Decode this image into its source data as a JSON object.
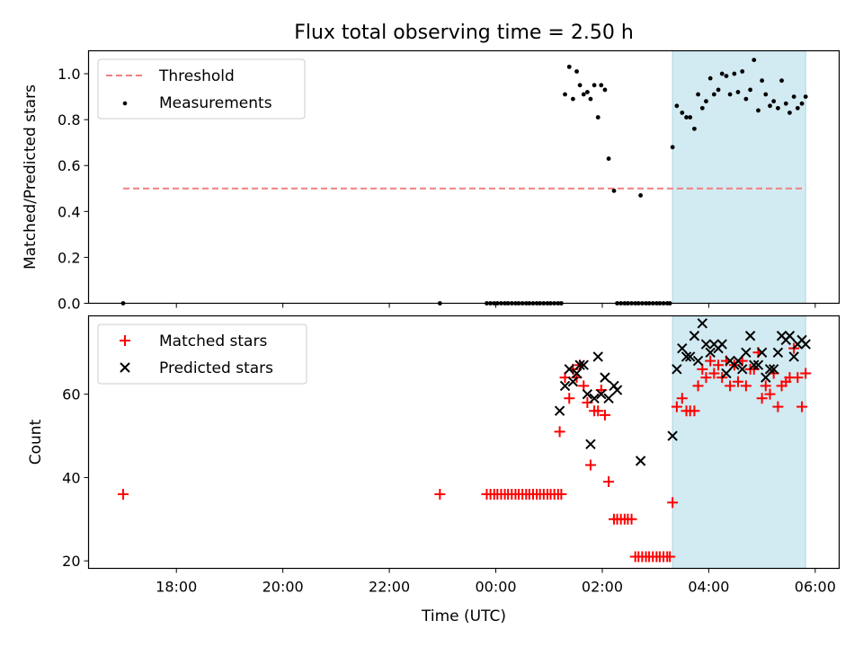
{
  "chart_data": [
    {
      "type": "scatter",
      "title": "Flux total observing time = 2.50 h",
      "xlabel": "",
      "ylabel": "Matched/Predicted stars",
      "xlim": [
        -7.65,
        6.45
      ],
      "ylim": [
        0,
        1.1
      ],
      "yticks": [
        0.0,
        0.2,
        0.4,
        0.6,
        0.8,
        1.0
      ],
      "ytick_labels": [
        "0.0",
        "0.2",
        "0.4",
        "0.6",
        "0.8",
        "1.0"
      ],
      "shaded_region": {
        "x0": 3.32,
        "x1": 5.82,
        "color": "#add8e6"
      },
      "legend": {
        "placement": "top-left",
        "entries": [
          "Threshold",
          "Measurements"
        ]
      },
      "series": [
        {
          "name": "Threshold",
          "style": "dashed-line",
          "color": "#f08080",
          "x": [
            -7.0,
            5.82
          ],
          "y": [
            0.5,
            0.5
          ]
        },
        {
          "name": "Measurements",
          "style": "dot",
          "color": "#000000",
          "x": [
            -7.0,
            -1.05,
            -0.17,
            -0.1,
            -0.03,
            0.03,
            0.1,
            0.17,
            0.23,
            0.3,
            0.37,
            0.43,
            0.5,
            0.57,
            0.63,
            0.7,
            0.77,
            0.83,
            0.9,
            0.97,
            1.03,
            1.1,
            1.17,
            1.23,
            1.3,
            1.38,
            1.45,
            1.52,
            1.58,
            1.65,
            1.72,
            1.78,
            1.85,
            1.92,
            1.98,
            2.05,
            2.12,
            2.22,
            2.28,
            2.35,
            2.42,
            2.48,
            2.55,
            2.62,
            2.68,
            2.72,
            2.75,
            2.82,
            2.88,
            2.95,
            3.02,
            3.08,
            3.15,
            3.22,
            3.27,
            3.32,
            3.4,
            3.5,
            3.58,
            3.65,
            3.73,
            3.8,
            3.88,
            3.95,
            4.03,
            4.1,
            4.18,
            4.25,
            4.33,
            4.4,
            4.48,
            4.55,
            4.63,
            4.7,
            4.78,
            4.85,
            4.93,
            5.0,
            5.07,
            5.15,
            5.22,
            5.3,
            5.37,
            5.45,
            5.52,
            5.6,
            5.67,
            5.75,
            5.82
          ],
          "y": [
            0,
            0,
            0,
            0,
            0,
            0,
            0,
            0,
            0,
            0,
            0,
            0,
            0,
            0,
            0,
            0,
            0,
            0,
            0,
            0,
            0,
            0,
            0,
            0,
            0.91,
            1.03,
            0.89,
            1.01,
            0.95,
            0.91,
            0.92,
            0.89,
            0.95,
            0.81,
            0.95,
            0.93,
            0.63,
            0.49,
            0,
            0,
            0,
            0,
            0,
            0,
            0,
            0.47,
            0,
            0,
            0,
            0,
            0,
            0,
            0,
            0,
            0,
            0.68,
            0.86,
            0.83,
            0.81,
            0.81,
            0.76,
            0.91,
            0.85,
            0.88,
            0.98,
            0.91,
            0.93,
            1.0,
            0.99,
            0.91,
            1.0,
            0.92,
            1.01,
            0.89,
            0.93,
            1.06,
            0.84,
            0.97,
            0.91,
            0.86,
            0.88,
            0.85,
            0.97,
            0.87,
            0.83,
            0.9,
            0.85,
            0.87,
            0.9
          ]
        }
      ]
    },
    {
      "type": "scatter",
      "title": "",
      "xlabel": "Time (UTC)",
      "ylabel": "Count",
      "xlim": [
        -7.65,
        6.45
      ],
      "ylim": [
        18.2,
        78.8
      ],
      "xticks": [
        -6,
        -4,
        -2,
        0,
        2,
        4,
        6
      ],
      "xtick_labels": [
        "18:00",
        "20:00",
        "22:00",
        "00:00",
        "02:00",
        "04:00",
        "06:00"
      ],
      "yticks": [
        20,
        40,
        60
      ],
      "ytick_labels": [
        "20",
        "40",
        "60"
      ],
      "shaded_region": {
        "x0": 3.32,
        "x1": 5.82,
        "color": "#add8e6"
      },
      "legend": {
        "placement": "top-left",
        "entries": [
          "Matched stars",
          "Predicted stars"
        ]
      },
      "series": [
        {
          "name": "Matched stars",
          "style": "plus",
          "color": "#ff0000",
          "x": [
            -7.0,
            -1.05,
            -0.17,
            -0.1,
            -0.03,
            0.03,
            0.1,
            0.17,
            0.23,
            0.3,
            0.37,
            0.43,
            0.5,
            0.57,
            0.63,
            0.7,
            0.77,
            0.83,
            0.9,
            0.97,
            1.03,
            1.1,
            1.17,
            1.23,
            1.2,
            1.3,
            1.38,
            1.45,
            1.52,
            1.58,
            1.65,
            1.72,
            1.78,
            1.85,
            1.92,
            1.98,
            2.05,
            2.12,
            2.22,
            2.28,
            2.35,
            2.42,
            2.48,
            2.55,
            2.62,
            2.68,
            2.75,
            2.82,
            2.88,
            2.95,
            3.02,
            3.08,
            3.15,
            3.22,
            3.27,
            3.32,
            3.4,
            3.5,
            3.58,
            3.65,
            3.73,
            3.8,
            3.88,
            3.95,
            4.03,
            4.1,
            4.18,
            4.25,
            4.33,
            4.4,
            4.48,
            4.55,
            4.63,
            4.7,
            4.78,
            4.85,
            4.93,
            5.0,
            5.07,
            5.15,
            5.22,
            5.3,
            5.37,
            5.45,
            5.52,
            5.6,
            5.67,
            5.75,
            5.82
          ],
          "y": [
            36,
            36,
            36,
            36,
            36,
            36,
            36,
            36,
            36,
            36,
            36,
            36,
            36,
            36,
            36,
            36,
            36,
            36,
            36,
            36,
            36,
            36,
            36,
            36,
            51,
            64,
            59,
            66,
            64,
            67,
            62,
            58,
            43,
            56,
            56,
            61,
            55,
            39,
            30,
            30,
            30,
            30,
            30,
            30,
            21,
            21,
            21,
            21,
            21,
            21,
            21,
            21,
            21,
            21,
            21,
            34,
            57,
            59,
            56,
            56,
            56,
            62,
            66,
            64,
            68,
            65,
            67,
            64,
            68,
            62,
            67,
            63,
            68,
            62,
            66,
            66,
            70,
            59,
            62,
            60,
            65,
            57,
            62,
            63,
            64,
            71,
            64,
            57,
            65
          ]
        },
        {
          "name": "Predicted stars",
          "style": "x",
          "color": "#000000",
          "x": [
            1.2,
            1.3,
            1.38,
            1.45,
            1.52,
            1.58,
            1.65,
            1.72,
            1.78,
            1.85,
            1.92,
            1.98,
            2.05,
            2.12,
            2.22,
            2.28,
            2.72,
            3.32,
            3.4,
            3.5,
            3.58,
            3.65,
            3.73,
            3.8,
            3.88,
            3.95,
            4.03,
            4.1,
            4.18,
            4.25,
            4.33,
            4.4,
            4.48,
            4.55,
            4.63,
            4.7,
            4.78,
            4.85,
            4.93,
            5.0,
            5.07,
            5.15,
            5.22,
            5.3,
            5.37,
            5.45,
            5.52,
            5.6,
            5.67,
            5.75,
            5.82
          ],
          "y": [
            56,
            62,
            66,
            63,
            65,
            67,
            67,
            60,
            48,
            59,
            69,
            60,
            64,
            59,
            62,
            61,
            44,
            50,
            66,
            71,
            69,
            69,
            74,
            68,
            77,
            72,
            70,
            72,
            71,
            72,
            65,
            68,
            67,
            68,
            66,
            70,
            74,
            67,
            67,
            70,
            64,
            66,
            66,
            70,
            74,
            73,
            74,
            69,
            72,
            73,
            72
          ]
        }
      ]
    }
  ]
}
